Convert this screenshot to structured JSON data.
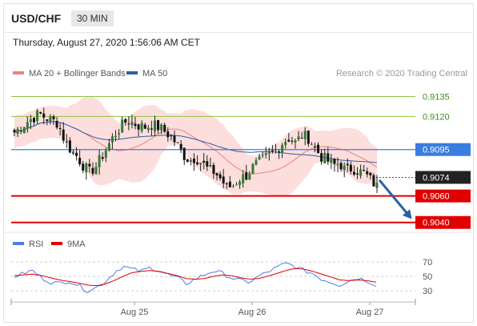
{
  "header": {
    "symbol": "USD/CHF",
    "timeframe": "30 MIN",
    "timestamp": "Thursday, August 27, 2020 1:56:06 AM CET"
  },
  "colors": {
    "ma20": "#f08080",
    "ma50": "#2b5fa8",
    "support": "#e00000",
    "resistance": "#8fc43f",
    "pivot": "#3a7de0",
    "last": "#222222",
    "rsi": "#4f7be8",
    "rsi_ma": "#e00000",
    "arrow": "#2b5fa8"
  },
  "chart_data": [
    {
      "type": "candlestick",
      "legend": [
        {
          "name": "MA 20 + Bollinger Bands"
        },
        {
          "name": "MA 50"
        }
      ],
      "credit": "Research © 2020 Trading Central",
      "x_ticks": [
        "Aug 25",
        "Aug 26",
        "Aug 27"
      ],
      "ylim": [
        0.9035,
        0.9145
      ],
      "resistances": [
        "0.9135",
        "0.9120"
      ],
      "pivot": "0.9095",
      "last": "0.9074",
      "supports": [
        "0.9060",
        "0.9040"
      ],
      "forecast": {
        "from": 0.9072,
        "to": 0.9042
      },
      "close_path": [
        0.9108,
        0.9112,
        0.9116,
        0.9119,
        0.9122,
        0.9119,
        0.9117,
        0.9115,
        0.9102,
        0.9095,
        0.909,
        0.9083,
        0.9078,
        0.9082,
        0.909,
        0.9098,
        0.9106,
        0.9112,
        0.9117,
        0.9115,
        0.9113,
        0.9112,
        0.9114,
        0.9112,
        0.9109,
        0.9105,
        0.9099,
        0.9091,
        0.9087,
        0.9089,
        0.9085,
        0.908,
        0.9078,
        0.9073,
        0.9066,
        0.9068,
        0.9073,
        0.9075,
        0.9081,
        0.9085,
        0.9088,
        0.9092,
        0.9095,
        0.9101,
        0.9104,
        0.91,
        0.9106,
        0.9104,
        0.9097,
        0.909,
        0.9087,
        0.9083,
        0.9085,
        0.9079,
        0.9081,
        0.9079,
        0.9077,
        0.9072,
        0.9067
      ]
    },
    {
      "type": "line",
      "legend": [
        {
          "name": "RSI"
        },
        {
          "name": "9MA"
        }
      ],
      "y_ticks": [
        "70",
        "50",
        "30"
      ],
      "ylim": [
        20,
        80
      ],
      "rsi_path": [
        50,
        54,
        58,
        48,
        42,
        40,
        44,
        38,
        30,
        34,
        42,
        55,
        64,
        60,
        57,
        62,
        58,
        52,
        48,
        40,
        46,
        52,
        58,
        54,
        48,
        44,
        42,
        50,
        56,
        62,
        68,
        64,
        58,
        54,
        46,
        42,
        38,
        44,
        48,
        44,
        38
      ],
      "ma_path": [
        51,
        52,
        53,
        51,
        48,
        45,
        43,
        41,
        38,
        37,
        39,
        44,
        50,
        55,
        57,
        58,
        57,
        54,
        51,
        47,
        46,
        47,
        50,
        52,
        51,
        48,
        46,
        47,
        50,
        54,
        58,
        61,
        60,
        57,
        53,
        49,
        45,
        44,
        45,
        44,
        42
      ]
    }
  ]
}
